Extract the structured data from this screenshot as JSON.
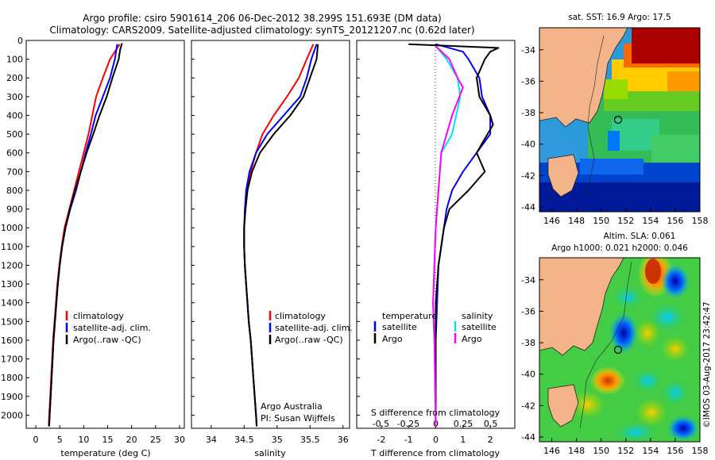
{
  "title_line1": "Argo profile: csiro 5901614_206 06-Dec-2012 38.299S 151.693E (DM data)",
  "title_line2": "Climatology: CARS2009. Satellite-adjusted climatology: synTS_20121207.nc (0.62d later)",
  "colors": {
    "climatology": "#ff0000",
    "satellite": "#0000ff",
    "argo": "#000000",
    "argo_s": "#ff00ff",
    "sat_s": "#00e6e6"
  },
  "depth_ticks": [
    "0",
    "100",
    "200",
    "300",
    "400",
    "500",
    "600",
    "700",
    "800",
    "900",
    "1000",
    "1100",
    "1200",
    "1300",
    "1400",
    "1500",
    "1600",
    "1700",
    "1800",
    "1900",
    "2000"
  ],
  "legend_labels": {
    "climatology": "climatology",
    "satellite": "satellite-adj. clim.",
    "argo": "Argo(..raw -QC)"
  },
  "diff_legend": {
    "temperature": "temperature",
    "salinity": "salinity",
    "satellite": "satellite",
    "argo": "Argo"
  },
  "panel_temp": {
    "xlabel": "temperature (deg C)",
    "xticks": [
      "0",
      "5",
      "10",
      "15",
      "20",
      "25",
      "30"
    ],
    "xlim": [
      -2,
      31
    ]
  },
  "panel_sal": {
    "xlabel": "salinity",
    "xticks": [
      "34",
      "34.5",
      "35",
      "35.5",
      "36"
    ],
    "xlim": [
      33.7,
      36.1
    ],
    "note_line1": "Argo Australia",
    "note_line2": "PI: Susan Wijffels"
  },
  "panel_diff": {
    "xlabel": "T difference from climatology",
    "xticks": [
      "-2",
      "-1",
      "0",
      "1",
      "2"
    ],
    "top_label": "S difference from climatology",
    "s_ticks": [
      "-0.5",
      "-0.25",
      "0",
      "0.25",
      "0.5"
    ],
    "xlim": [
      -2.9,
      2.9
    ]
  },
  "map_sst": {
    "title": "sat. SST: 16.9 Argo: 17.5",
    "lat_ticks": [
      "-34",
      "-36",
      "-38",
      "-40",
      "-42",
      "-44"
    ],
    "lon_ticks": [
      "146",
      "148",
      "150",
      "152",
      "154",
      "156",
      "158"
    ]
  },
  "map_sla": {
    "title_line1": "Altim. SLA: 0.061",
    "title_line2": "Argo h1000: 0.021 h2000: 0.046",
    "lat_ticks": [
      "-34",
      "-36",
      "-38",
      "-40",
      "-42",
      "-44"
    ],
    "lon_ticks": [
      "146",
      "148",
      "150",
      "152",
      "154",
      "156",
      "158"
    ]
  },
  "credit": "©IMOS 03-Aug-2017 23:42:47",
  "chart_data": [
    {
      "type": "line",
      "name": "temperature profile",
      "xlabel": "temperature (deg C)",
      "ylabel": "",
      "xlim": [
        -2,
        31
      ],
      "ylim": [
        2070,
        0
      ],
      "series": [
        {
          "name": "climatology",
          "color": "#ff0000",
          "points": [
            [
              17.5,
              20
            ],
            [
              16.5,
              60
            ],
            [
              15.5,
              100
            ],
            [
              14,
              200
            ],
            [
              12.6,
              300
            ],
            [
              11.8,
              400
            ],
            [
              11,
              500
            ],
            [
              10,
              600
            ],
            [
              9,
              700
            ],
            [
              8,
              800
            ],
            [
              7,
              900
            ],
            [
              6,
              1000
            ],
            [
              5.4,
              1100
            ],
            [
              4.9,
              1200
            ],
            [
              4.5,
              1300
            ],
            [
              4.2,
              1400
            ],
            [
              3.9,
              1500
            ],
            [
              3.6,
              1600
            ],
            [
              3.4,
              1700
            ],
            [
              3.2,
              1800
            ],
            [
              3,
              1900
            ],
            [
              2.8,
              2000
            ],
            [
              2.7,
              2060
            ]
          ]
        },
        {
          "name": "satellite-adj. clim.",
          "color": "#0000ff",
          "points": [
            [
              17,
              20
            ],
            [
              16.5,
              100
            ],
            [
              15.5,
              200
            ],
            [
              14,
              300
            ],
            [
              12.5,
              400
            ],
            [
              11.5,
              500
            ],
            [
              10.4,
              600
            ],
            [
              9.4,
              700
            ],
            [
              8.4,
              800
            ],
            [
              7.2,
              900
            ],
            [
              6.2,
              1000
            ],
            [
              5.5,
              1100
            ],
            [
              5,
              1200
            ],
            [
              4.6,
              1300
            ],
            [
              4.3,
              1400
            ],
            [
              4,
              1500
            ],
            [
              3.7,
              1600
            ],
            [
              3.5,
              1700
            ],
            [
              3.3,
              1800
            ],
            [
              3.1,
              1900
            ],
            [
              2.9,
              2000
            ],
            [
              2.8,
              2060
            ]
          ]
        },
        {
          "name": "Argo(..raw -QC)",
          "color": "#000000",
          "points": [
            [
              18,
              15
            ],
            [
              17.6,
              50
            ],
            [
              17.3,
              100
            ],
            [
              16,
              200
            ],
            [
              14.8,
              300
            ],
            [
              13.3,
              400
            ],
            [
              12,
              500
            ],
            [
              10.6,
              600
            ],
            [
              9.4,
              700
            ],
            [
              8.2,
              800
            ],
            [
              7.1,
              900
            ],
            [
              6.2,
              1000
            ],
            [
              5.5,
              1100
            ],
            [
              5,
              1200
            ],
            [
              4.6,
              1300
            ],
            [
              4.3,
              1400
            ],
            [
              4,
              1500
            ],
            [
              3.7,
              1600
            ],
            [
              3.5,
              1700
            ],
            [
              3.3,
              1800
            ],
            [
              3.1,
              1900
            ],
            [
              2.9,
              2000
            ],
            [
              2.8,
              2060
            ]
          ]
        }
      ]
    },
    {
      "type": "line",
      "name": "salinity profile",
      "xlabel": "salinity",
      "ylabel": "",
      "xlim": [
        33.7,
        36.1
      ],
      "ylim": [
        2070,
        0
      ],
      "series": [
        {
          "name": "climatology",
          "color": "#ff0000",
          "points": [
            [
              35.55,
              20
            ],
            [
              35.45,
              100
            ],
            [
              35.33,
              200
            ],
            [
              35.15,
              300
            ],
            [
              34.95,
              400
            ],
            [
              34.78,
              500
            ],
            [
              34.68,
              600
            ],
            [
              34.6,
              700
            ],
            [
              34.55,
              800
            ],
            [
              34.52,
              900
            ],
            [
              34.5,
              1000
            ],
            [
              34.5,
              1100
            ],
            [
              34.51,
              1200
            ],
            [
              34.53,
              1300
            ],
            [
              34.55,
              1400
            ],
            [
              34.57,
              1500
            ],
            [
              34.6,
              1600
            ],
            [
              34.62,
              1700
            ],
            [
              34.64,
              1800
            ],
            [
              34.66,
              1900
            ],
            [
              34.68,
              2000
            ],
            [
              34.69,
              2060
            ]
          ]
        },
        {
          "name": "satellite-adj. clim.",
          "color": "#0000ff",
          "points": [
            [
              35.6,
              20
            ],
            [
              35.52,
              100
            ],
            [
              35.45,
              200
            ],
            [
              35.35,
              300
            ],
            [
              35.1,
              400
            ],
            [
              34.85,
              500
            ],
            [
              34.68,
              600
            ],
            [
              34.58,
              700
            ],
            [
              34.53,
              800
            ],
            [
              34.51,
              900
            ],
            [
              34.5,
              1000
            ],
            [
              34.5,
              1100
            ],
            [
              34.51,
              1200
            ],
            [
              34.53,
              1300
            ],
            [
              34.55,
              1400
            ],
            [
              34.57,
              1500
            ],
            [
              34.6,
              1600
            ],
            [
              34.62,
              1700
            ],
            [
              34.64,
              1800
            ],
            [
              34.66,
              1900
            ],
            [
              34.68,
              2000
            ],
            [
              34.69,
              2060
            ]
          ]
        },
        {
          "name": "Argo(..raw -QC)",
          "color": "#000000",
          "points": [
            [
              35.62,
              20
            ],
            [
              35.6,
              100
            ],
            [
              35.5,
              200
            ],
            [
              35.4,
              300
            ],
            [
              35.2,
              400
            ],
            [
              34.95,
              500
            ],
            [
              34.74,
              600
            ],
            [
              34.62,
              700
            ],
            [
              34.55,
              800
            ],
            [
              34.52,
              900
            ],
            [
              34.5,
              1000
            ],
            [
              34.5,
              1100
            ],
            [
              34.51,
              1200
            ],
            [
              34.53,
              1300
            ],
            [
              34.55,
              1400
            ],
            [
              34.57,
              1500
            ],
            [
              34.6,
              1600
            ],
            [
              34.62,
              1700
            ],
            [
              34.64,
              1800
            ],
            [
              34.66,
              1900
            ],
            [
              34.68,
              2000
            ],
            [
              34.69,
              2060
            ]
          ]
        }
      ]
    },
    {
      "type": "line",
      "name": "difference from climatology",
      "xlabel": "T difference from climatology",
      "x2label": "S difference from climatology",
      "xlim": [
        -2.9,
        2.9
      ],
      "ylim": [
        2070,
        0
      ],
      "series": [
        {
          "name": "temperature satellite",
          "color": "#0000ff",
          "points": [
            [
              0,
              20
            ],
            [
              1,
              60
            ],
            [
              1.2,
              100
            ],
            [
              1.6,
              200
            ],
            [
              1.7,
              300
            ],
            [
              2,
              400
            ],
            [
              2,
              500
            ],
            [
              1.5,
              600
            ],
            [
              1,
              700
            ],
            [
              0.6,
              800
            ],
            [
              0.4,
              900
            ],
            [
              0.3,
              1000
            ],
            [
              0.2,
              1100
            ],
            [
              0.1,
              1200
            ],
            [
              0.05,
              1400
            ],
            [
              0,
              1600
            ],
            [
              0,
              2060
            ]
          ]
        },
        {
          "name": "temperature Argo",
          "color": "#000000",
          "points": [
            [
              -1,
              20
            ],
            [
              2.3,
              40
            ],
            [
              2,
              60
            ],
            [
              1.8,
              100
            ],
            [
              1.5,
              200
            ],
            [
              1.6,
              300
            ],
            [
              2,
              400
            ],
            [
              2.1,
              450
            ],
            [
              1.7,
              550
            ],
            [
              1.5,
              600
            ],
            [
              1.8,
              700
            ],
            [
              1.2,
              800
            ],
            [
              0.5,
              900
            ],
            [
              0.3,
              1000
            ],
            [
              0.1,
              1200
            ],
            [
              0,
              1400
            ],
            [
              0,
              2060
            ]
          ]
        },
        {
          "name": "salinity satellite",
          "color": "#00e6e6",
          "points": [
            [
              0,
              30
            ],
            [
              0.4,
              100
            ],
            [
              0.8,
              200
            ],
            [
              0.9,
              300
            ],
            [
              0.75,
              400
            ],
            [
              0.6,
              500
            ],
            [
              0.2,
              600
            ],
            [
              0.1,
              800
            ],
            [
              0,
              1000
            ],
            [
              -0.05,
              1200
            ],
            [
              -0.1,
              1400
            ],
            [
              -0.05,
              1600
            ],
            [
              0,
              2060
            ]
          ]
        },
        {
          "name": "salinity Argo",
          "color": "#ff00ff",
          "points": [
            [
              0,
              30
            ],
            [
              0.5,
              100
            ],
            [
              0.8,
              200
            ],
            [
              1,
              250
            ],
            [
              0.6,
              400
            ],
            [
              0.4,
              500
            ],
            [
              0.2,
              600
            ],
            [
              0.1,
              800
            ],
            [
              0,
              1000
            ],
            [
              -0.05,
              1200
            ],
            [
              -0.1,
              1400
            ],
            [
              -0.05,
              1600
            ],
            [
              0,
              2060
            ]
          ]
        }
      ]
    },
    {
      "type": "heatmap",
      "name": "satellite SST map",
      "xlim": [
        145,
        158
      ],
      "ylim": [
        -44.3,
        -32.6
      ],
      "marker": {
        "lon": 151.693,
        "lat": -38.299
      },
      "colorscale": [
        "#00008b",
        "#0044ff",
        "#00aaff",
        "#22cc44",
        "#88dd00",
        "#ffee00",
        "#ff9900",
        "#ff3300",
        "#aa0000"
      ]
    },
    {
      "type": "heatmap",
      "name": "altimetry SLA map",
      "xlim": [
        145,
        158
      ],
      "ylim": [
        -44.3,
        -32.6
      ],
      "marker": {
        "lon": 151.693,
        "lat": -38.299
      }
    }
  ]
}
